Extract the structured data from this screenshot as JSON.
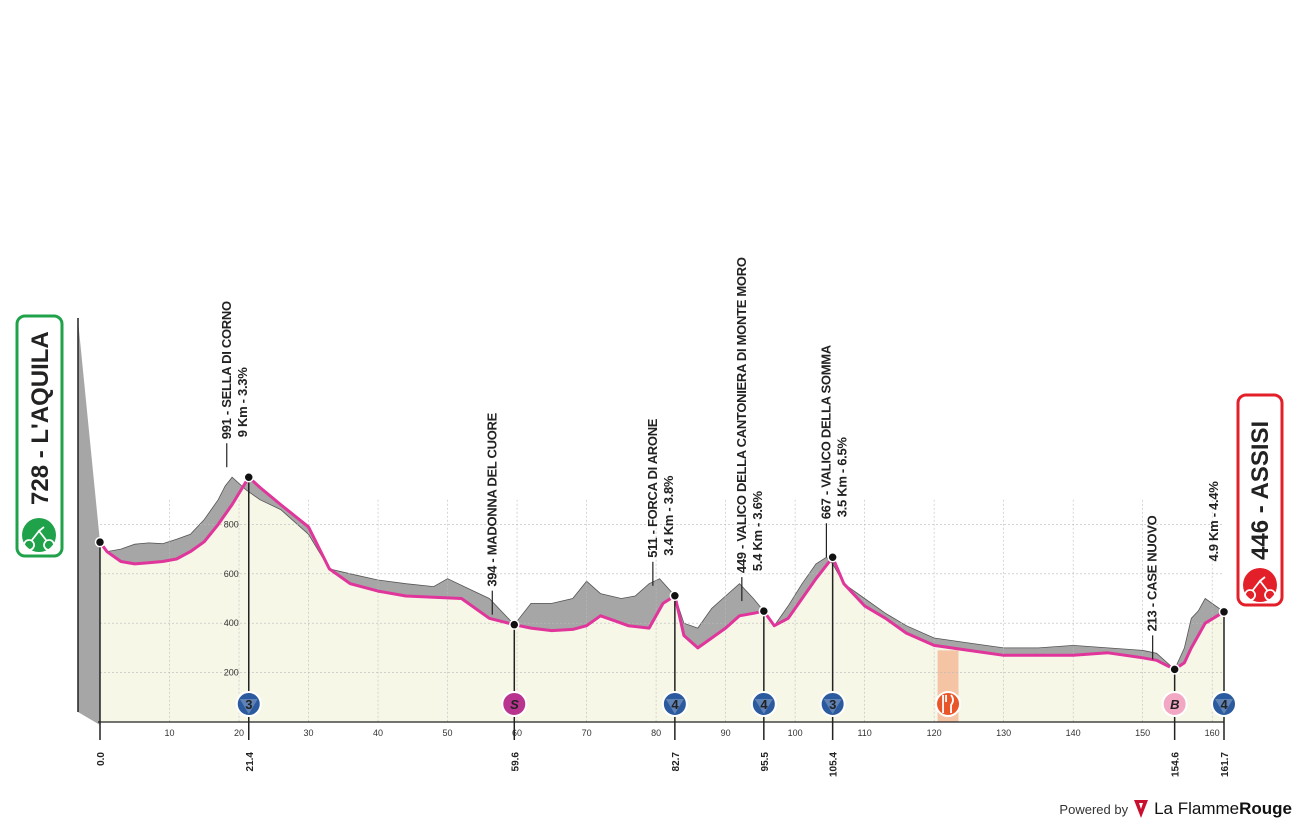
{
  "chart_data": {
    "type": "area",
    "x_range": [
      0,
      161.7
    ],
    "y_range": [
      0,
      1000
    ],
    "x_ticks": [
      10,
      20,
      30,
      40,
      50,
      60,
      70,
      80,
      90,
      100,
      110,
      120,
      130,
      140,
      150,
      160
    ],
    "y_ticks": [
      200,
      400,
      600,
      800
    ],
    "profile": [
      [
        0,
        728
      ],
      [
        1,
        690
      ],
      [
        3,
        700
      ],
      [
        5,
        720
      ],
      [
        7,
        725
      ],
      [
        9,
        722
      ],
      [
        11,
        740
      ],
      [
        13,
        760
      ],
      [
        15,
        820
      ],
      [
        17,
        900
      ],
      [
        18,
        955
      ],
      [
        19,
        991
      ],
      [
        21,
        940
      ],
      [
        23,
        900
      ],
      [
        26,
        860
      ],
      [
        30,
        760
      ],
      [
        33,
        620
      ],
      [
        36,
        600
      ],
      [
        40,
        575
      ],
      [
        44,
        560
      ],
      [
        48,
        548
      ],
      [
        50,
        580
      ],
      [
        53,
        540
      ],
      [
        56,
        500
      ],
      [
        59.6,
        394
      ],
      [
        62,
        480
      ],
      [
        65,
        480
      ],
      [
        68,
        500
      ],
      [
        70,
        570
      ],
      [
        72,
        520
      ],
      [
        75,
        500
      ],
      [
        77,
        510
      ],
      [
        79,
        560
      ],
      [
        80.5,
        580
      ],
      [
        82.7,
        511
      ],
      [
        84,
        400
      ],
      [
        86,
        380
      ],
      [
        88,
        460
      ],
      [
        90,
        510
      ],
      [
        92,
        560
      ],
      [
        94,
        500
      ],
      [
        95.5,
        449
      ],
      [
        97,
        390
      ],
      [
        99,
        470
      ],
      [
        101,
        560
      ],
      [
        103,
        640
      ],
      [
        104.5,
        667
      ],
      [
        105.4,
        640
      ],
      [
        107,
        560
      ],
      [
        110,
        500
      ],
      [
        113,
        440
      ],
      [
        116,
        390
      ],
      [
        120,
        340
      ],
      [
        125,
        320
      ],
      [
        130,
        300
      ],
      [
        135,
        300
      ],
      [
        140,
        310
      ],
      [
        145,
        300
      ],
      [
        150,
        290
      ],
      [
        152,
        278
      ],
      [
        154.6,
        213
      ],
      [
        156,
        300
      ],
      [
        157,
        420
      ],
      [
        158,
        450
      ],
      [
        159,
        500
      ],
      [
        161.7,
        446
      ]
    ],
    "pink_profile": [
      [
        0,
        728
      ],
      [
        1,
        690
      ],
      [
        3,
        650
      ],
      [
        5,
        640
      ],
      [
        7,
        645
      ],
      [
        9,
        650
      ],
      [
        11,
        660
      ],
      [
        13,
        690
      ],
      [
        15,
        730
      ],
      [
        17,
        800
      ],
      [
        19,
        880
      ],
      [
        21.4,
        991
      ],
      [
        23,
        950
      ],
      [
        26,
        880
      ],
      [
        30,
        790
      ],
      [
        33,
        620
      ],
      [
        36,
        560
      ],
      [
        40,
        530
      ],
      [
        44,
        510
      ],
      [
        48,
        505
      ],
      [
        52,
        500
      ],
      [
        56,
        420
      ],
      [
        59.6,
        394
      ],
      [
        62,
        380
      ],
      [
        65,
        370
      ],
      [
        68,
        375
      ],
      [
        70,
        390
      ],
      [
        72,
        430
      ],
      [
        74,
        410
      ],
      [
        76,
        390
      ],
      [
        79,
        380
      ],
      [
        81,
        480
      ],
      [
        82.7,
        511
      ],
      [
        84,
        350
      ],
      [
        86,
        300
      ],
      [
        88,
        340
      ],
      [
        90,
        380
      ],
      [
        92,
        430
      ],
      [
        94,
        440
      ],
      [
        95.5,
        449
      ],
      [
        97,
        390
      ],
      [
        99,
        420
      ],
      [
        101,
        500
      ],
      [
        103,
        580
      ],
      [
        105.4,
        667
      ],
      [
        107,
        560
      ],
      [
        110,
        470
      ],
      [
        113,
        420
      ],
      [
        116,
        360
      ],
      [
        120,
        310
      ],
      [
        125,
        290
      ],
      [
        130,
        270
      ],
      [
        135,
        270
      ],
      [
        140,
        270
      ],
      [
        145,
        280
      ],
      [
        150,
        260
      ],
      [
        152,
        250
      ],
      [
        154.6,
        213
      ],
      [
        156,
        240
      ],
      [
        157,
        300
      ],
      [
        158,
        350
      ],
      [
        159,
        400
      ],
      [
        161.7,
        446
      ]
    ],
    "start": {
      "km": "0.0",
      "city": "728 - L'AQUILA",
      "x": 0,
      "y": 728
    },
    "finish": {
      "km": "161.7",
      "city": "446 - ASSISI",
      "x": 161.7,
      "y": 446
    },
    "climbs": [
      {
        "km": "21.4",
        "x": 21.4,
        "y": 991,
        "name": "991 - SELLA DI CORNO",
        "detail": "9 Km - 3.3%",
        "cat": "3",
        "kind": "cat"
      },
      {
        "km": "59.6",
        "x": 59.6,
        "y": 394,
        "name": "394 - MADONNA DEL CUORE",
        "detail": "",
        "cat": "S",
        "kind": "sprint"
      },
      {
        "km": "82.7",
        "x": 82.7,
        "y": 511,
        "name": "511 - FORCA DI ARONE",
        "detail": "3.4 Km - 3.8%",
        "cat": "4",
        "kind": "cat"
      },
      {
        "km": "95.5",
        "x": 95.5,
        "y": 449,
        "name": "449 - VALICO DELLA CANTONIERA DI MONTE MORO",
        "detail": "5.4 Km - 3.6%",
        "cat": "4",
        "kind": "cat"
      },
      {
        "km": "105.4",
        "x": 105.4,
        "y": 667,
        "name": "667 - VALICO DELLA SOMMA",
        "detail": "3.5 Km - 6.5%",
        "cat": "3",
        "kind": "cat"
      },
      {
        "km": "154.6",
        "x": 154.6,
        "y": 213,
        "name": "213 - CASE NUOVO",
        "detail": "",
        "cat": "B",
        "kind": "bonus"
      },
      {
        "km": "161.7",
        "x": 161.7,
        "y": 446,
        "name": "",
        "detail": "4.9 Km - 4.4%",
        "cat": "4",
        "kind": "cat"
      }
    ],
    "feed_zone": {
      "x_start": 120.5,
      "x_end": 123.5
    },
    "colors": {
      "profile": "#a6a6a6",
      "pink": "#e0359a",
      "fill": "#f7f7e8",
      "start": "#1fa24a",
      "finish": "#e3202a",
      "cat_badge": "#2b5a9e",
      "sprint": "#b8348f",
      "bonus": "#f2a7c2",
      "feed": "#f5c4a4"
    }
  },
  "footer": {
    "powered": "Powered by",
    "brand_1": "La Flamme",
    "brand_2": "Rouge"
  }
}
